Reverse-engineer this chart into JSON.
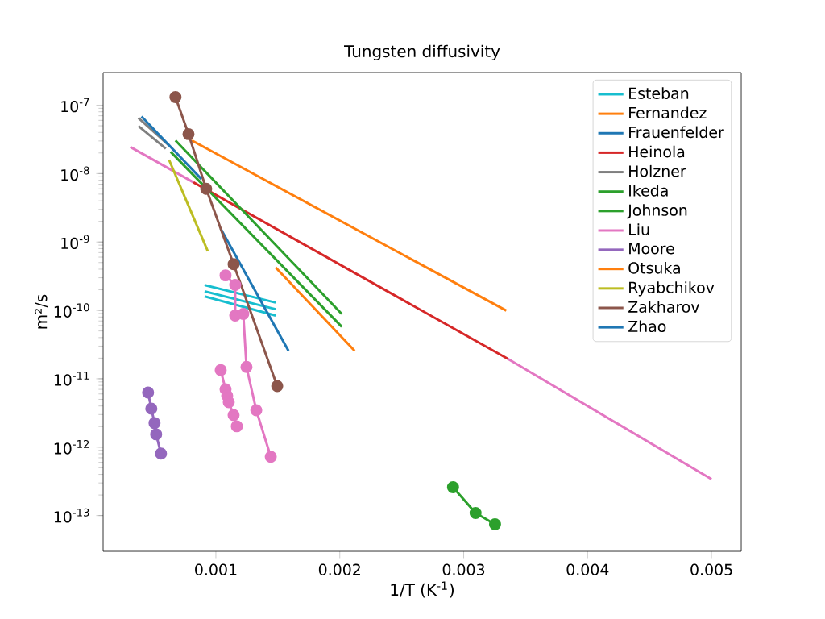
{
  "chart_data": {
    "type": "line",
    "title": "Tungsten diffusivity",
    "xlabel": "1/T (K$^{-1}$)",
    "ylabel": "m²/s",
    "log": "y",
    "legend": "top right",
    "line_style": "solid",
    "xlim": [
      9e-05,
      0.00524
    ],
    "xticks": [
      0.001,
      0.002,
      0.003,
      0.004,
      0.005
    ],
    "ylim": [
      3e-14,
      3e-07
    ],
    "yticks": [
      {
        "value": 1e-13,
        "label": "10$^{-13}$"
      },
      {
        "value": 1e-12,
        "label": "10$^{-12}$"
      },
      {
        "value": 1e-11,
        "label": "10$^{-11}$"
      },
      {
        "value": 1e-10,
        "label": "10$^{-10}$"
      },
      {
        "value": 1e-09,
        "label": "10$^{-9}$"
      },
      {
        "value": 1e-08,
        "label": "10$^{-8}$"
      },
      {
        "value": 1e-07,
        "label": "10$^{-7}$"
      }
    ],
    "series": [
      {
        "name": "Esteban",
        "color": "#17becf",
        "marker": "none",
        "x": [
          0.000909,
          0.001482
        ],
        "values": [
          2.35e-10,
          1.3e-10
        ]
      },
      {
        "color": "#17becf",
        "marker": "none",
        "x": [
          0.000909,
          0.001482
        ],
        "values": [
          1.9e-10,
          1.04e-10
        ]
      },
      {
        "color": "#17becf",
        "marker": "none",
        "x": [
          0.000909,
          0.001482
        ],
        "values": [
          1.6e-10,
          8.4e-11
        ]
      },
      {
        "name": "Fernandez",
        "color": "#ff7f0e",
        "marker": "none",
        "x": [
          0.000806,
          0.003344
        ],
        "values": [
          3.05e-08,
          9.9e-11
        ]
      },
      {
        "name": "Frauenfelder",
        "color": "#1f77b4",
        "marker": "none",
        "x": [
          0.001039,
          0.001586
        ],
        "values": [
          1.56e-09,
          2.56e-11
        ]
      },
      {
        "name": "Heinola",
        "color": "#d62728",
        "marker": "none",
        "x": [
          0.000818,
          0.003357
        ],
        "values": [
          7.46e-09,
          1.95e-11
        ]
      },
      {
        "name": "Holzner",
        "color": "#7f7f7f",
        "marker": "none",
        "x": [
          0.000375,
          0.000622
        ],
        "values": [
          6.49e-08,
          2.59e-08
        ]
      },
      {
        "color": "#7f7f7f",
        "marker": "none",
        "x": [
          0.000375,
          0.000596
        ],
        "values": [
          4.95e-08,
          2.32e-08
        ]
      },
      {
        "name": "Ikeda",
        "color": "#2ca02c",
        "marker": "none",
        "x": [
          0.000674,
          0.002016
        ],
        "values": [
          3.05e-08,
          8.88e-11
        ]
      },
      {
        "name": "Johnson",
        "color": "#2ca02c",
        "marker": "none",
        "x": [
          0.000635,
          0.002016
        ],
        "values": [
          2.08e-08,
          5.77e-11
        ]
      },
      {
        "color": "#2ca02c",
        "marker": "circle",
        "x": [
          0.002914,
          0.003096,
          0.003253
        ],
        "values": [
          2.59e-13,
          1.09e-13,
          7.46e-14
        ]
      },
      {
        "name": "Liu",
        "color": "#e377c2",
        "marker": "none",
        "x": [
          0.00031,
          0.000818
        ],
        "values": [
          2.45e-08,
          7.46e-09
        ]
      },
      {
        "color": "#e377c2",
        "marker": "none",
        "x": [
          0.003357,
          0.005
        ],
        "values": [
          1.95e-11,
          3.4e-13
        ]
      },
      {
        "color": "#e377c2",
        "marker": "circle",
        "x": [
          0.001078,
          0.001156,
          0.001156,
          0.001221,
          0.001247,
          0.001326,
          0.001443
        ],
        "values": [
          3.25e-10,
          2.35e-10,
          8.41e-11,
          8.88e-11,
          1.49e-11,
          3.47e-12,
          7.23e-13
        ]
      },
      {
        "color": "#e377c2",
        "marker": "circle",
        "x": [
          0.001039,
          0.001078,
          0.001091,
          0.001104,
          0.001143,
          0.001169
        ],
        "values": [
          1.34e-11,
          7e-12,
          5.64e-12,
          4.54e-12,
          2.95e-12,
          2.02e-12
        ]
      },
      {
        "name": "Moore",
        "color": "#9467bd",
        "marker": "circle",
        "x": [
          0.000453,
          0.000479,
          0.000505,
          0.000518,
          0.000557
        ],
        "values": [
          6.28e-12,
          3.66e-12,
          2.25e-12,
          1.54e-12,
          8.05e-13
        ]
      },
      {
        "name": "Otsuka",
        "color": "#ff7f0e",
        "marker": "none",
        "x": [
          0.001482,
          0.00212
        ],
        "values": [
          4.26e-10,
          2.56e-11
        ]
      },
      {
        "name": "Ryabchikov",
        "color": "#bcbd22",
        "marker": "none",
        "x": [
          0.000622,
          0.000935
        ],
        "values": [
          1.59e-08,
          7.31e-10
        ]
      },
      {
        "name": "Zakharov",
        "color": "#8c564b",
        "marker": "circle",
        "x": [
          0.000674,
          0.000779,
          0.000922,
          0.001143,
          0.001495
        ],
        "values": [
          1.31e-07,
          3.78e-08,
          6e-09,
          4.74e-10,
          7.8e-12
        ]
      },
      {
        "name": "Zhao",
        "color": "#1f77b4",
        "marker": "none",
        "x": [
          0.0004,
          0.000883
        ],
        "values": [
          6.85e-08,
          8.32e-09
        ]
      }
    ]
  }
}
